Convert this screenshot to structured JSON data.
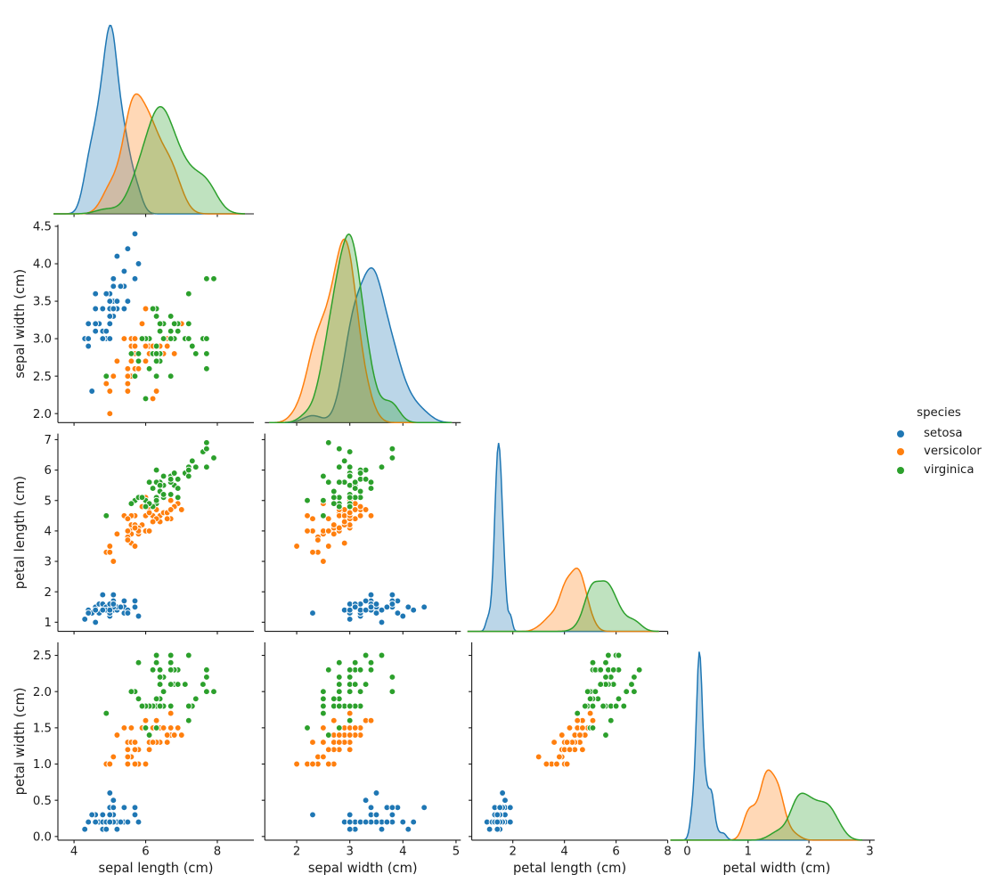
{
  "chart_data": {
    "type": "scatter",
    "subtype": "corner-pairplot-with-kde-diagonal",
    "title": "",
    "variables": [
      "sepal length (cm)",
      "sepal width (cm)",
      "petal length (cm)",
      "petal width (cm)"
    ],
    "legend": {
      "title": "species",
      "items": [
        {
          "label": "setosa",
          "color": "#1f77b4"
        },
        {
          "label": "versicolor",
          "color": "#ff7f0e"
        },
        {
          "label": "virginica",
          "color": "#2ca02c"
        }
      ]
    },
    "axes": {
      "x_limits": [
        [
          3.55,
          9.02
        ],
        [
          1.4,
          5.09
        ],
        [
          0.41,
          8.0
        ],
        [
          -0.14,
          3.08
        ]
      ],
      "y_limits": [
        [
          1.88,
          4.52
        ],
        [
          0.7,
          7.2
        ],
        [
          -0.05,
          2.68
        ]
      ],
      "x_ticks": [
        [
          4,
          6,
          8
        ],
        [
          2,
          3,
          4,
          5
        ],
        [
          2,
          4,
          6,
          8
        ],
        [
          0,
          1,
          2,
          3
        ]
      ],
      "x_tick_labels": [
        [
          "4",
          "6",
          "8"
        ],
        [
          "2",
          "3",
          "4",
          "5"
        ],
        [
          "2",
          "4",
          "6",
          "8"
        ],
        [
          "0",
          "1",
          "2",
          "3"
        ]
      ],
      "y_ticks": [
        [
          2.0,
          2.5,
          3.0,
          3.5,
          4.0,
          4.5
        ],
        [
          1,
          2,
          3,
          4,
          5,
          6,
          7
        ],
        [
          0.0,
          0.5,
          1.0,
          1.5,
          2.0,
          2.5
        ]
      ],
      "y_tick_labels": [
        [
          "2.0",
          "2.5",
          "3.0",
          "3.5",
          "4.0",
          "4.5"
        ],
        [
          "1",
          "2",
          "3",
          "4",
          "5",
          "6",
          "7"
        ],
        [
          "0.0",
          "0.5",
          "1.0",
          "1.5",
          "2.0",
          "2.5"
        ]
      ]
    },
    "species": [
      {
        "name": "setosa",
        "color": "#1f77b4",
        "points": [
          [
            5.1,
            3.5,
            1.4,
            0.2
          ],
          [
            4.9,
            3.0,
            1.4,
            0.2
          ],
          [
            4.7,
            3.2,
            1.3,
            0.2
          ],
          [
            4.6,
            3.1,
            1.5,
            0.2
          ],
          [
            5.0,
            3.6,
            1.4,
            0.2
          ],
          [
            5.4,
            3.9,
            1.7,
            0.4
          ],
          [
            4.6,
            3.4,
            1.4,
            0.3
          ],
          [
            5.0,
            3.4,
            1.5,
            0.2
          ],
          [
            4.4,
            2.9,
            1.4,
            0.2
          ],
          [
            4.9,
            3.1,
            1.5,
            0.1
          ],
          [
            5.4,
            3.7,
            1.5,
            0.2
          ],
          [
            4.8,
            3.4,
            1.6,
            0.2
          ],
          [
            4.8,
            3.0,
            1.4,
            0.1
          ],
          [
            4.3,
            3.0,
            1.1,
            0.1
          ],
          [
            5.8,
            4.0,
            1.2,
            0.2
          ],
          [
            5.7,
            4.4,
            1.5,
            0.4
          ],
          [
            5.4,
            3.9,
            1.3,
            0.4
          ],
          [
            5.1,
            3.5,
            1.4,
            0.3
          ],
          [
            5.7,
            3.8,
            1.7,
            0.3
          ],
          [
            5.1,
            3.8,
            1.5,
            0.3
          ],
          [
            5.4,
            3.4,
            1.7,
            0.2
          ],
          [
            5.1,
            3.7,
            1.5,
            0.4
          ],
          [
            4.6,
            3.6,
            1.0,
            0.2
          ],
          [
            5.1,
            3.3,
            1.7,
            0.5
          ],
          [
            4.8,
            3.4,
            1.9,
            0.2
          ],
          [
            5.0,
            3.0,
            1.6,
            0.2
          ],
          [
            5.0,
            3.4,
            1.6,
            0.4
          ],
          [
            5.2,
            3.5,
            1.5,
            0.2
          ],
          [
            5.2,
            3.4,
            1.4,
            0.2
          ],
          [
            4.7,
            3.2,
            1.6,
            0.2
          ],
          [
            4.8,
            3.1,
            1.6,
            0.2
          ],
          [
            5.4,
            3.4,
            1.5,
            0.4
          ],
          [
            5.2,
            4.1,
            1.5,
            0.1
          ],
          [
            5.5,
            4.2,
            1.4,
            0.2
          ],
          [
            4.9,
            3.1,
            1.5,
            0.2
          ],
          [
            5.0,
            3.2,
            1.2,
            0.2
          ],
          [
            5.5,
            3.5,
            1.3,
            0.2
          ],
          [
            4.9,
            3.6,
            1.4,
            0.1
          ],
          [
            4.4,
            3.0,
            1.3,
            0.2
          ],
          [
            5.1,
            3.4,
            1.5,
            0.2
          ],
          [
            5.0,
            3.5,
            1.3,
            0.3
          ],
          [
            4.5,
            2.3,
            1.3,
            0.3
          ],
          [
            4.4,
            3.2,
            1.3,
            0.2
          ],
          [
            5.0,
            3.5,
            1.6,
            0.6
          ],
          [
            5.1,
            3.8,
            1.9,
            0.4
          ],
          [
            4.8,
            3.0,
            1.4,
            0.3
          ],
          [
            5.1,
            3.8,
            1.6,
            0.2
          ],
          [
            4.6,
            3.2,
            1.4,
            0.2
          ],
          [
            5.3,
            3.7,
            1.5,
            0.2
          ],
          [
            5.0,
            3.3,
            1.4,
            0.2
          ]
        ]
      },
      {
        "name": "versicolor",
        "color": "#ff7f0e",
        "points": [
          [
            7.0,
            3.2,
            4.7,
            1.4
          ],
          [
            6.4,
            3.2,
            4.5,
            1.5
          ],
          [
            6.9,
            3.1,
            4.9,
            1.5
          ],
          [
            5.5,
            2.3,
            4.0,
            1.3
          ],
          [
            6.5,
            2.8,
            4.6,
            1.5
          ],
          [
            5.7,
            2.8,
            4.5,
            1.3
          ],
          [
            6.3,
            3.3,
            4.7,
            1.6
          ],
          [
            4.9,
            2.4,
            3.3,
            1.0
          ],
          [
            6.6,
            2.9,
            4.6,
            1.3
          ],
          [
            5.2,
            2.7,
            3.9,
            1.4
          ],
          [
            5.0,
            2.0,
            3.5,
            1.0
          ],
          [
            5.9,
            3.0,
            4.2,
            1.5
          ],
          [
            6.0,
            2.2,
            4.0,
            1.0
          ],
          [
            6.1,
            2.9,
            4.7,
            1.4
          ],
          [
            5.6,
            2.9,
            3.6,
            1.3
          ],
          [
            6.7,
            3.1,
            4.4,
            1.4
          ],
          [
            5.6,
            3.0,
            4.5,
            1.5
          ],
          [
            5.8,
            2.7,
            4.1,
            1.0
          ],
          [
            6.2,
            2.2,
            4.5,
            1.5
          ],
          [
            5.6,
            2.5,
            3.9,
            1.1
          ],
          [
            5.9,
            3.2,
            4.8,
            1.8
          ],
          [
            6.1,
            2.8,
            4.0,
            1.3
          ],
          [
            6.3,
            2.5,
            4.9,
            1.5
          ],
          [
            6.1,
            2.8,
            4.7,
            1.2
          ],
          [
            6.4,
            2.9,
            4.3,
            1.3
          ],
          [
            6.6,
            3.0,
            4.4,
            1.4
          ],
          [
            6.8,
            2.8,
            4.8,
            1.4
          ],
          [
            6.7,
            3.0,
            5.0,
            1.7
          ],
          [
            6.0,
            2.9,
            4.5,
            1.5
          ],
          [
            5.7,
            2.6,
            3.5,
            1.0
          ],
          [
            5.5,
            2.4,
            3.8,
            1.1
          ],
          [
            5.5,
            2.4,
            3.7,
            1.0
          ],
          [
            5.8,
            2.7,
            3.9,
            1.2
          ],
          [
            6.0,
            2.7,
            5.1,
            1.6
          ],
          [
            5.4,
            3.0,
            4.5,
            1.5
          ],
          [
            6.0,
            3.4,
            4.5,
            1.6
          ],
          [
            6.7,
            3.1,
            4.7,
            1.5
          ],
          [
            6.3,
            2.3,
            4.4,
            1.3
          ],
          [
            5.6,
            3.0,
            4.1,
            1.3
          ],
          [
            5.5,
            2.5,
            4.0,
            1.3
          ],
          [
            5.5,
            2.6,
            4.4,
            1.2
          ],
          [
            6.1,
            3.0,
            4.6,
            1.4
          ],
          [
            5.8,
            2.6,
            4.0,
            1.2
          ],
          [
            5.0,
            2.3,
            3.3,
            1.0
          ],
          [
            5.6,
            2.7,
            4.2,
            1.3
          ],
          [
            5.7,
            3.0,
            4.2,
            1.2
          ],
          [
            5.7,
            2.9,
            4.2,
            1.3
          ],
          [
            6.2,
            2.9,
            4.3,
            1.3
          ],
          [
            5.1,
            2.5,
            3.0,
            1.1
          ],
          [
            5.7,
            2.8,
            4.1,
            1.3
          ]
        ]
      },
      {
        "name": "virginica",
        "color": "#2ca02c",
        "points": [
          [
            6.3,
            3.3,
            6.0,
            2.5
          ],
          [
            5.8,
            2.7,
            5.1,
            1.9
          ],
          [
            7.1,
            3.0,
            5.9,
            2.1
          ],
          [
            6.3,
            2.9,
            5.6,
            1.8
          ],
          [
            6.5,
            3.0,
            5.8,
            2.2
          ],
          [
            7.6,
            3.0,
            6.6,
            2.1
          ],
          [
            4.9,
            2.5,
            4.5,
            1.7
          ],
          [
            7.3,
            2.9,
            6.3,
            1.8
          ],
          [
            6.7,
            2.5,
            5.8,
            1.8
          ],
          [
            7.2,
            3.6,
            6.1,
            2.5
          ],
          [
            6.5,
            3.2,
            5.1,
            2.0
          ],
          [
            6.4,
            2.7,
            5.3,
            1.9
          ],
          [
            6.8,
            3.0,
            5.5,
            2.1
          ],
          [
            5.7,
            2.5,
            5.0,
            2.0
          ],
          [
            5.8,
            2.8,
            5.1,
            2.4
          ],
          [
            6.4,
            3.2,
            5.3,
            2.3
          ],
          [
            6.5,
            3.0,
            5.5,
            1.8
          ],
          [
            7.7,
            3.8,
            6.7,
            2.2
          ],
          [
            7.7,
            2.6,
            6.9,
            2.3
          ],
          [
            6.0,
            2.2,
            5.0,
            1.5
          ],
          [
            6.9,
            3.2,
            5.7,
            2.3
          ],
          [
            5.6,
            2.8,
            4.9,
            2.0
          ],
          [
            7.7,
            2.8,
            6.7,
            2.0
          ],
          [
            6.3,
            2.7,
            4.9,
            1.8
          ],
          [
            6.7,
            3.3,
            5.7,
            2.1
          ],
          [
            7.2,
            3.2,
            6.0,
            1.8
          ],
          [
            6.2,
            2.8,
            4.8,
            1.8
          ],
          [
            6.1,
            3.0,
            4.9,
            1.8
          ],
          [
            6.4,
            2.8,
            5.6,
            2.1
          ],
          [
            7.2,
            3.0,
            5.8,
            1.6
          ],
          [
            7.4,
            2.8,
            6.1,
            1.9
          ],
          [
            7.9,
            3.8,
            6.4,
            2.0
          ],
          [
            6.4,
            2.8,
            5.6,
            2.2
          ],
          [
            6.3,
            2.8,
            5.1,
            1.5
          ],
          [
            6.1,
            2.6,
            5.6,
            1.4
          ],
          [
            7.7,
            3.0,
            6.1,
            2.3
          ],
          [
            6.3,
            3.4,
            5.6,
            2.4
          ],
          [
            6.4,
            3.1,
            5.5,
            1.8
          ],
          [
            6.0,
            3.0,
            4.8,
            1.8
          ],
          [
            6.9,
            3.1,
            5.4,
            2.1
          ],
          [
            6.7,
            3.1,
            5.6,
            2.4
          ],
          [
            6.9,
            3.1,
            5.1,
            2.3
          ],
          [
            5.8,
            2.7,
            5.1,
            1.9
          ],
          [
            6.8,
            3.2,
            5.9,
            2.3
          ],
          [
            6.7,
            3.3,
            5.7,
            2.5
          ],
          [
            6.7,
            3.0,
            5.2,
            2.3
          ],
          [
            6.3,
            2.5,
            5.0,
            1.9
          ],
          [
            6.5,
            3.0,
            5.2,
            2.0
          ],
          [
            6.2,
            3.4,
            5.4,
            2.3
          ],
          [
            5.9,
            3.0,
            5.1,
            1.8
          ]
        ]
      }
    ],
    "style": {
      "foreground": "#1a1a1a",
      "marker_edge": "#ffffff",
      "kde_fill_opacity": 0.3
    }
  }
}
